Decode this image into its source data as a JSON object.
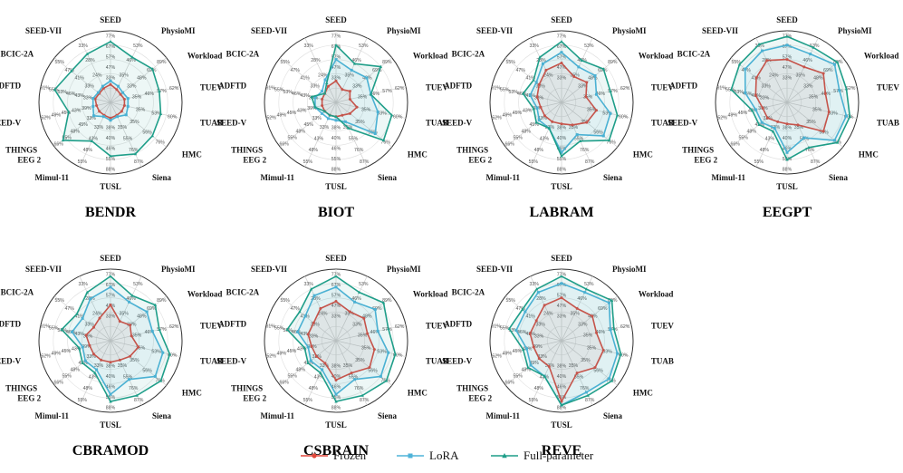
{
  "figure": {
    "legend": [
      {
        "label": "Frozen",
        "color": "#e0473a",
        "marker": "circle"
      },
      {
        "label": "LoRA",
        "color": "#4fb3d9",
        "marker": "square"
      },
      {
        "label": "Full-parameter",
        "color": "#1f9e89",
        "marker": "triangle"
      }
    ]
  },
  "chart_data": [
    {
      "type": "radar",
      "title": "BENDR",
      "axes": [
        "SEED",
        "PhysioMI",
        "Workload",
        "TUEV",
        "TUAB",
        "HMC",
        "Siena",
        "TUSL",
        "Mimul-11",
        "THINGS EEG 2",
        "SEED-V",
        "ADFTD",
        "BCIC-2A",
        "SEED-VII"
      ],
      "axis_ticks": [
        [
          "33%",
          "47%",
          "57%",
          "67%",
          "77%"
        ],
        [
          "35%",
          "46%",
          "53%"
        ],
        [
          "33%",
          "48%",
          "69%",
          "89%"
        ],
        [
          "35%",
          "46%",
          "57%",
          "62%"
        ],
        [
          "35%",
          "53%",
          "60%"
        ],
        [
          "35%",
          "56%",
          "76%"
        ],
        [
          "35%",
          "55%",
          "76%",
          "87%"
        ],
        [
          "38%",
          "40%",
          "46%",
          "55%",
          "88%"
        ],
        [
          "33%",
          "43%",
          "48%",
          "55%"
        ],
        [
          "33%",
          "45%",
          "48%",
          "55%",
          "66%"
        ],
        [
          "39%",
          "43%",
          "45%",
          "49%",
          "52%"
        ],
        [
          "33%",
          "43%",
          "46%",
          "53%",
          "55%",
          "61%"
        ],
        [
          "33%",
          "41%",
          "47%",
          "55%"
        ],
        [
          "24%",
          "28%",
          "33%"
        ]
      ],
      "series": [
        {
          "name": "Frozen",
          "values": [
            0.25,
            0.2,
            0.18,
            0.2,
            0.2,
            0.2,
            0.2,
            0.22,
            0.2,
            0.2,
            0.2,
            0.22,
            0.2,
            0.22
          ]
        },
        {
          "name": "LoRA",
          "values": [
            0.3,
            0.25,
            0.22,
            0.25,
            0.25,
            0.28,
            0.22,
            0.25,
            0.22,
            0.3,
            0.25,
            0.25,
            0.22,
            0.25
          ]
        },
        {
          "name": "Full-parameter",
          "values": [
            0.85,
            0.7,
            0.75,
            0.7,
            0.72,
            0.75,
            0.8,
            0.75,
            0.6,
            0.85,
            0.6,
            0.8,
            0.7,
            0.75
          ]
        }
      ]
    },
    {
      "type": "radar",
      "title": "BIOT",
      "axes": [
        "SEED",
        "PhysioMI",
        "Workload",
        "TUEV",
        "TUAB",
        "HMC",
        "Siena",
        "TUSL",
        "Mimul-11",
        "THINGS EEG 2",
        "SEED-V",
        "ADFTD",
        "BCIC-2A",
        "SEED-VII"
      ],
      "axis_ticks": [
        [
          "33%",
          "47%",
          "57%",
          "67%",
          "77%"
        ],
        [
          "35%",
          "46%",
          "53%"
        ],
        [
          "33%",
          "48%",
          "69%",
          "89%"
        ],
        [
          "35%",
          "46%",
          "57%",
          "62%"
        ],
        [
          "35%",
          "53%",
          "60%"
        ],
        [
          "35%",
          "56%",
          "76%"
        ],
        [
          "35%",
          "55%",
          "76%",
          "87%"
        ],
        [
          "38%",
          "40%",
          "46%",
          "55%",
          "88%"
        ],
        [
          "33%",
          "43%",
          "48%",
          "55%"
        ],
        [
          "33%",
          "45%",
          "48%",
          "55%",
          "66%"
        ],
        [
          "39%",
          "43%",
          "45%",
          "49%",
          "52%"
        ],
        [
          "33%",
          "43%",
          "46%",
          "53%",
          "55%",
          "61%"
        ],
        [
          "33%",
          "41%",
          "47%",
          "55%"
        ],
        [
          "24%",
          "28%",
          "33%"
        ]
      ],
      "series": [
        {
          "name": "Frozen",
          "values": [
            0.3,
            0.2,
            0.25,
            0.2,
            0.3,
            0.25,
            0.2,
            0.2,
            0.2,
            0.2,
            0.2,
            0.2,
            0.2,
            0.25
          ]
        },
        {
          "name": "LoRA",
          "values": [
            0.6,
            0.5,
            0.55,
            0.5,
            0.6,
            0.7,
            0.3,
            0.25,
            0.25,
            0.25,
            0.3,
            0.3,
            0.25,
            0.35
          ]
        },
        {
          "name": "Full-parameter",
          "values": [
            0.8,
            0.6,
            0.8,
            0.5,
            0.8,
            0.85,
            0.4,
            0.2,
            0.2,
            0.2,
            0.3,
            0.35,
            0.2,
            0.3
          ]
        }
      ]
    },
    {
      "type": "radar",
      "title": "LABRAM",
      "axes": [
        "SEED",
        "PhysioMI",
        "Workload",
        "TUEV",
        "TUAB",
        "HMC",
        "Siena",
        "TUSL",
        "Mimul-11",
        "THINGS EEG 2",
        "SEED-V",
        "ADFTD",
        "BCIC-2A",
        "SEED-VII"
      ],
      "axis_ticks": [
        [
          "33%",
          "47%",
          "57%",
          "67%",
          "77%"
        ],
        [
          "35%",
          "46%",
          "53%"
        ],
        [
          "33%",
          "48%",
          "69%",
          "89%"
        ],
        [
          "35%",
          "46%",
          "57%",
          "62%"
        ],
        [
          "35%",
          "53%",
          "60%"
        ],
        [
          "35%",
          "56%",
          "76%"
        ],
        [
          "35%",
          "55%",
          "76%",
          "87%"
        ],
        [
          "38%",
          "40%",
          "46%",
          "55%",
          "88%"
        ],
        [
          "33%",
          "43%",
          "48%",
          "55%"
        ],
        [
          "33%",
          "45%",
          "48%",
          "55%",
          "66%"
        ],
        [
          "39%",
          "43%",
          "45%",
          "49%",
          "52%"
        ],
        [
          "33%",
          "43%",
          "46%",
          "53%",
          "55%",
          "61%"
        ],
        [
          "33%",
          "41%",
          "47%",
          "55%"
        ],
        [
          "24%",
          "28%",
          "33%"
        ]
      ],
      "series": [
        {
          "name": "Frozen",
          "values": [
            0.55,
            0.4,
            0.45,
            0.35,
            0.5,
            0.45,
            0.35,
            0.3,
            0.3,
            0.3,
            0.3,
            0.35,
            0.4,
            0.5
          ]
        },
        {
          "name": "LoRA",
          "values": [
            0.7,
            0.55,
            0.6,
            0.5,
            0.7,
            0.75,
            0.5,
            0.7,
            0.4,
            0.4,
            0.35,
            0.45,
            0.45,
            0.6
          ]
        },
        {
          "name": "Full-parameter",
          "values": [
            0.85,
            0.65,
            0.75,
            0.7,
            0.8,
            0.85,
            0.6,
            0.75,
            0.4,
            0.45,
            0.4,
            0.55,
            0.5,
            0.7
          ]
        }
      ]
    },
    {
      "type": "radar",
      "title": "EEGPT",
      "axes": [
        "SEED",
        "PhysioMI",
        "Workload",
        "TUEV",
        "TUAB",
        "HMC",
        "Siena",
        "TUSL",
        "Mimul-11",
        "THINGS EEG 2",
        "SEED-V",
        "ADFTD",
        "BCIC-2A",
        "SEED-VII"
      ],
      "axis_ticks": [
        [
          "33%",
          "47%",
          "57%",
          "67%",
          "77%"
        ],
        [
          "35%",
          "46%",
          "53%"
        ],
        [
          "33%",
          "48%",
          "69%",
          "89%"
        ],
        [
          "35%",
          "46%",
          "57%",
          "62%"
        ],
        [
          "35%",
          "53%",
          "60%"
        ],
        [
          "35%",
          "56%",
          "76%"
        ],
        [
          "35%",
          "55%",
          "76%",
          "87%"
        ],
        [
          "38%",
          "40%",
          "46%",
          "55%",
          "88%"
        ],
        [
          "33%",
          "43%",
          "48%",
          "55%"
        ],
        [
          "33%",
          "45%",
          "48%",
          "55%",
          "66%"
        ],
        [
          "39%",
          "43%",
          "45%",
          "49%",
          "52%"
        ],
        [
          "33%",
          "43%",
          "46%",
          "53%",
          "55%",
          "61%"
        ],
        [
          "33%",
          "41%",
          "47%",
          "55%"
        ],
        [
          "24%",
          "28%",
          "33%"
        ]
      ],
      "series": [
        {
          "name": "Frozen",
          "values": [
            0.6,
            0.55,
            0.65,
            0.55,
            0.6,
            0.65,
            0.35,
            0.3,
            0.3,
            0.35,
            0.35,
            0.45,
            0.55,
            0.65
          ]
        },
        {
          "name": "LoRA",
          "values": [
            0.8,
            0.75,
            0.85,
            0.75,
            0.85,
            0.85,
            0.55,
            0.7,
            0.4,
            0.45,
            0.45,
            0.6,
            0.75,
            0.8
          ]
        },
        {
          "name": "Full-parameter",
          "values": [
            0.92,
            0.85,
            0.9,
            0.85,
            0.9,
            0.9,
            0.7,
            0.8,
            0.45,
            0.5,
            0.5,
            0.8,
            0.85,
            0.9
          ]
        }
      ]
    },
    {
      "type": "radar",
      "title": "CBRAMOD",
      "axes": [
        "SEED",
        "PhysioMI",
        "Workload",
        "TUEV",
        "TUAB",
        "HMC",
        "Siena",
        "TUSL",
        "Mimul-11",
        "THINGS EEG 2",
        "SEED-V",
        "ADFTD",
        "BCIC-2A",
        "SEED-VII"
      ],
      "axis_ticks": [
        [
          "33%",
          "47%",
          "57%",
          "67%",
          "77%"
        ],
        [
          "35%",
          "46%",
          "53%"
        ],
        [
          "33%",
          "48%",
          "69%",
          "89%"
        ],
        [
          "35%",
          "46%",
          "57%",
          "62%"
        ],
        [
          "35%",
          "53%",
          "60%"
        ],
        [
          "35%",
          "56%",
          "76%"
        ],
        [
          "35%",
          "55%",
          "76%",
          "87%"
        ],
        [
          "38%",
          "40%",
          "46%",
          "55%",
          "88%"
        ],
        [
          "33%",
          "43%",
          "48%",
          "55%"
        ],
        [
          "33%",
          "45%",
          "48%",
          "55%",
          "66%"
        ],
        [
          "39%",
          "43%",
          "45%",
          "49%",
          "52%"
        ],
        [
          "33%",
          "43%",
          "46%",
          "53%",
          "55%",
          "61%"
        ],
        [
          "33%",
          "41%",
          "47%",
          "55%"
        ],
        [
          "24%",
          "28%",
          "33%"
        ]
      ],
      "series": [
        {
          "name": "Frozen",
          "values": [
            0.5,
            0.3,
            0.35,
            0.3,
            0.4,
            0.35,
            0.3,
            0.3,
            0.3,
            0.3,
            0.3,
            0.35,
            0.3,
            0.35
          ]
        },
        {
          "name": "LoRA",
          "values": [
            0.75,
            0.6,
            0.65,
            0.6,
            0.75,
            0.8,
            0.6,
            0.75,
            0.45,
            0.45,
            0.4,
            0.55,
            0.5,
            0.65
          ]
        },
        {
          "name": "Full-parameter",
          "values": [
            0.9,
            0.7,
            0.8,
            0.7,
            0.85,
            0.9,
            0.85,
            0.85,
            0.5,
            0.5,
            0.45,
            0.7,
            0.6,
            0.75
          ]
        }
      ]
    },
    {
      "type": "radar",
      "title": "CSBRAIN",
      "axes": [
        "SEED",
        "PhysioMI",
        "Workload",
        "TUEV",
        "TUAB",
        "HMC",
        "Siena",
        "TUSL",
        "Mimul-11",
        "THINGS EEG 2",
        "SEED-V",
        "ADFTD",
        "BCIC-2A",
        "SEED-VII"
      ],
      "axis_ticks": [
        [
          "33%",
          "47%",
          "57%",
          "67%",
          "77%"
        ],
        [
          "35%",
          "46%",
          "53%"
        ],
        [
          "33%",
          "48%",
          "69%",
          "89%"
        ],
        [
          "35%",
          "46%",
          "57%",
          "62%"
        ],
        [
          "35%",
          "53%",
          "60%"
        ],
        [
          "35%",
          "56%",
          "76%"
        ],
        [
          "35%",
          "55%",
          "76%",
          "87%"
        ],
        [
          "38%",
          "40%",
          "46%",
          "55%",
          "88%"
        ],
        [
          "33%",
          "43%",
          "48%",
          "55%"
        ],
        [
          "33%",
          "45%",
          "48%",
          "55%",
          "66%"
        ],
        [
          "39%",
          "43%",
          "45%",
          "49%",
          "52%"
        ],
        [
          "33%",
          "43%",
          "46%",
          "53%",
          "55%",
          "61%"
        ],
        [
          "33%",
          "41%",
          "47%",
          "55%"
        ],
        [
          "24%",
          "28%",
          "33%"
        ]
      ],
      "series": [
        {
          "name": "Frozen",
          "values": [
            0.55,
            0.45,
            0.5,
            0.45,
            0.55,
            0.6,
            0.5,
            0.55,
            0.35,
            0.35,
            0.35,
            0.4,
            0.4,
            0.5
          ]
        },
        {
          "name": "LoRA",
          "values": [
            0.75,
            0.6,
            0.7,
            0.6,
            0.75,
            0.8,
            0.6,
            0.75,
            0.45,
            0.45,
            0.4,
            0.55,
            0.55,
            0.7
          ]
        },
        {
          "name": "Full-parameter",
          "values": [
            0.9,
            0.75,
            0.85,
            0.75,
            0.85,
            0.9,
            0.85,
            0.85,
            0.5,
            0.5,
            0.45,
            0.7,
            0.65,
            0.8
          ]
        }
      ]
    },
    {
      "type": "radar",
      "title": "REVE",
      "axes": [
        "SEED",
        "PhysioMI",
        "Workload",
        "TUEV",
        "TUAB",
        "HMC",
        "Siena",
        "TUSL",
        "Mimul-11",
        "THINGS EEG 2",
        "SEED-V",
        "ADFTD",
        "BCIC-2A",
        "SEED-VII"
      ],
      "axis_ticks": [
        [
          "33%",
          "47%",
          "57%",
          "67%",
          "77%"
        ],
        [
          "35%",
          "46%",
          "53%"
        ],
        [
          "33%",
          "48%",
          "69%",
          "89%"
        ],
        [
          "35%",
          "46%",
          "57%",
          "62%"
        ],
        [
          "35%",
          "53%",
          "60%"
        ],
        [
          "35%",
          "56%",
          "76%"
        ],
        [
          "35%",
          "55%",
          "76%",
          "87%"
        ],
        [
          "38%",
          "40%",
          "46%",
          "55%",
          "88%"
        ],
        [
          "33%",
          "43%",
          "48%",
          "55%"
        ],
        [
          "33%",
          "45%",
          "48%",
          "55%",
          "66%"
        ],
        [
          "39%",
          "43%",
          "45%",
          "49%",
          "52%"
        ],
        [
          "33%",
          "43%",
          "46%",
          "53%",
          "55%",
          "61%"
        ],
        [
          "33%",
          "41%",
          "47%",
          "55%"
        ],
        [
          "24%",
          "28%",
          "33%"
        ]
      ],
      "series": [
        {
          "name": "Frozen",
          "values": [
            0.6,
            0.5,
            0.55,
            0.5,
            0.6,
            0.6,
            0.5,
            0.85,
            0.4,
            0.4,
            0.4,
            0.45,
            0.45,
            0.55
          ]
        },
        {
          "name": "LoRA",
          "values": [
            0.8,
            0.75,
            0.85,
            0.7,
            0.8,
            0.85,
            0.8,
            0.9,
            0.55,
            0.55,
            0.5,
            0.65,
            0.65,
            0.75
          ]
        },
        {
          "name": "Full-parameter",
          "values": [
            0.9,
            0.8,
            0.9,
            0.75,
            0.85,
            0.9,
            0.85,
            0.9,
            0.55,
            0.6,
            0.55,
            0.75,
            0.7,
            0.8
          ]
        }
      ]
    }
  ]
}
